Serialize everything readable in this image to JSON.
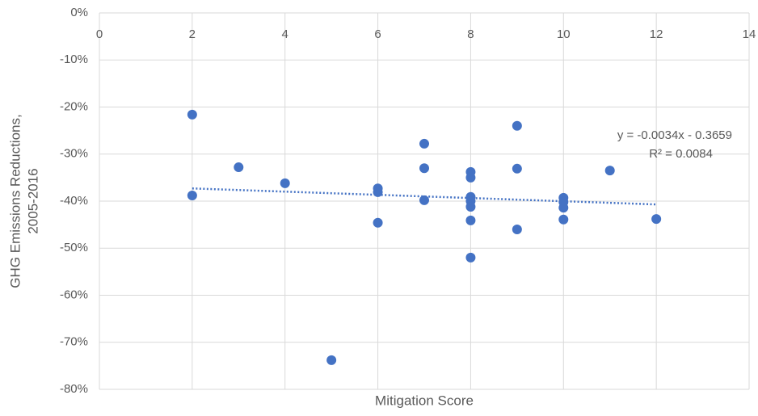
{
  "chart_data": {
    "type": "scatter",
    "x_label": "Mitigation Score",
    "y_label": [
      "GHG Emissions Reductions,",
      "2005-2016"
    ],
    "color": "#4472c4",
    "grid": true,
    "x": [
      2,
      2,
      3,
      4,
      5,
      6,
      6,
      6,
      7,
      7,
      7,
      8,
      8,
      8,
      8,
      8,
      8,
      8,
      9,
      9,
      9,
      10,
      10,
      10,
      10,
      11,
      12
    ],
    "values": [
      -21.6,
      -38.8,
      -32.8,
      -36.2,
      -73.8,
      -37.3,
      -38.1,
      -44.6,
      -27.8,
      -33.0,
      -39.8,
      -33.8,
      -35.0,
      -39.1,
      -40.0,
      -41.2,
      -44.1,
      -52.0,
      -24.0,
      -33.1,
      -46.0,
      -39.3,
      -40.2,
      -41.4,
      -43.9,
      -33.5,
      -43.8
    ],
    "trendline": {
      "x": [
        2,
        12
      ],
      "values": [
        -37.3,
        -40.7
      ]
    },
    "annotations": [
      "y = -0.0034x - 0.3659",
      "R² = 0.0084"
    ],
    "xlim": [
      0,
      14
    ],
    "xticks": [
      0,
      2,
      4,
      6,
      8,
      10,
      12,
      14
    ],
    "ylim": [
      -80,
      0
    ],
    "yticks": [
      {
        "value": 0,
        "label": "0%"
      },
      {
        "value": -10,
        "label": "-10%"
      },
      {
        "value": -20,
        "label": "-20%"
      },
      {
        "value": -30,
        "label": "-30%"
      },
      {
        "value": -40,
        "label": "-40%"
      },
      {
        "value": -50,
        "label": "-50%"
      },
      {
        "value": -60,
        "label": "-60%"
      },
      {
        "value": -70,
        "label": "-70%"
      },
      {
        "value": -80,
        "label": "-80%"
      }
    ]
  }
}
